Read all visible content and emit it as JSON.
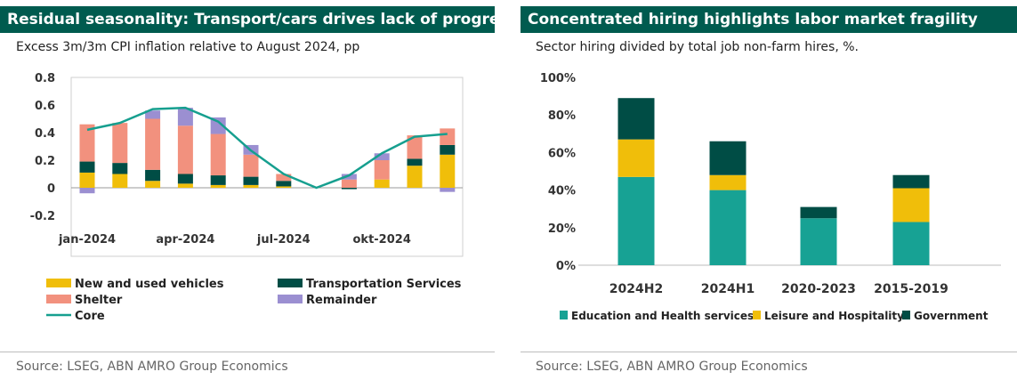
{
  "left": {
    "title": "Residual seasonality: Transport/cars drives lack of progress",
    "subtitle": "Excess 3m/3m CPI inflation relative to August 2024, pp",
    "source": "Source:  LSEG, ABN AMRO Group Economics"
  },
  "right": {
    "title": "Concentrated hiring highlights labor market fragility",
    "subtitle": "Sector hiring divided by total job non-farm hires, %.",
    "source": "Source: LSEG, ABN AMRO Group Economics"
  },
  "chart_data": [
    {
      "type": "bar",
      "stacked": true,
      "title": "Residual seasonality: Transport/cars drives lack of progress",
      "subtitle": "Excess 3m/3m CPI inflation relative to August 2024, pp",
      "x_ticks": [
        "jan-2024",
        "apr-2024",
        "jul-2024",
        "okt-2024"
      ],
      "y_ticks": [
        "0.8",
        "0.6",
        "0.4",
        "0.2",
        "0",
        "-0.2"
      ],
      "ylim": [
        -0.2,
        0.8
      ],
      "grid": false,
      "legend_position": "bottom",
      "categories": [
        "2024-01",
        "2024-02",
        "2024-03",
        "2024-04",
        "2024-05",
        "2024-06",
        "2024-07",
        "2024-08",
        "2024-09",
        "2024-10",
        "2024-11",
        "2024-12"
      ],
      "series": [
        {
          "name": "New and used vehicles",
          "color": "#f0be0a",
          "values": [
            0.11,
            0.1,
            0.05,
            0.03,
            0.02,
            0.02,
            0.01,
            0.0,
            0.0,
            0.06,
            0.16,
            0.24
          ]
        },
        {
          "name": "Transportation Services",
          "color": "#004d45",
          "values": [
            0.08,
            0.08,
            0.08,
            0.07,
            0.07,
            0.06,
            0.04,
            0.0,
            -0.01,
            0.0,
            0.05,
            0.07
          ]
        },
        {
          "name": "Shelter",
          "color": "#f2917e",
          "values": [
            0.27,
            0.29,
            0.37,
            0.35,
            0.3,
            0.16,
            0.05,
            0.0,
            0.06,
            0.14,
            0.17,
            0.12
          ]
        },
        {
          "name": "Remainder",
          "color": "#9b8fd1",
          "values": [
            -0.04,
            0.0,
            0.06,
            0.13,
            0.12,
            0.07,
            0.0,
            0.0,
            0.04,
            0.05,
            0.0,
            -0.03
          ]
        }
      ],
      "line": {
        "name": "Core",
        "color": "#169f8f",
        "values": [
          0.42,
          0.47,
          0.57,
          0.58,
          0.48,
          0.27,
          0.1,
          0.0,
          0.09,
          0.25,
          0.37,
          0.39
        ]
      }
    },
    {
      "type": "bar",
      "stacked": true,
      "title": "Concentrated hiring highlights labor market fragility",
      "subtitle": "Sector hiring divided by total job non-farm hires, %.",
      "categories": [
        "2024H2",
        "2024H1",
        "2020-2023",
        "2015-2019"
      ],
      "y_ticks": [
        "100%",
        "80%",
        "60%",
        "40%",
        "20%",
        "0%"
      ],
      "ylim": [
        0,
        100
      ],
      "grid": false,
      "legend_position": "bottom",
      "series": [
        {
          "name": "Education and Health services",
          "color": "#17a294",
          "values": [
            47,
            40,
            25,
            23
          ]
        },
        {
          "name": "Leisure and Hospitality",
          "color": "#f0be0a",
          "values": [
            20,
            8,
            0,
            18
          ]
        },
        {
          "name": "Government",
          "color": "#004d45",
          "values": [
            22,
            18,
            6,
            7
          ]
        }
      ]
    }
  ]
}
